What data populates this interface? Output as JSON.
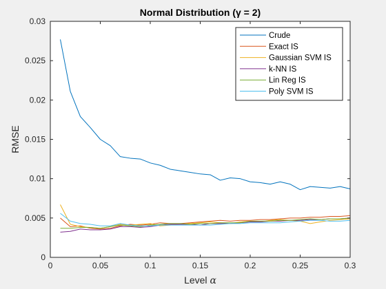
{
  "chart_data": {
    "type": "line",
    "title": "Normal Distribution (γ = 2)",
    "xlabel": "Level α",
    "ylabel": "RMSE",
    "xlim": [
      0,
      0.3
    ],
    "ylim": [
      0,
      0.03
    ],
    "xticks": [
      "0",
      "0.05",
      "0.1",
      "0.15",
      "0.2",
      "0.25",
      "0.3"
    ],
    "yticks": [
      "0",
      "0.005",
      "0.01",
      "0.015",
      "0.02",
      "0.025",
      "0.03"
    ],
    "grid": false,
    "legend_position": "top-right",
    "x": [
      0.01,
      0.02,
      0.03,
      0.04,
      0.05,
      0.06,
      0.07,
      0.08,
      0.09,
      0.1,
      0.11,
      0.12,
      0.13,
      0.14,
      0.15,
      0.16,
      0.17,
      0.18,
      0.19,
      0.2,
      0.21,
      0.22,
      0.23,
      0.24,
      0.25,
      0.26,
      0.27,
      0.28,
      0.29,
      0.3
    ],
    "series": [
      {
        "name": "Crude",
        "color": "#0072BD",
        "values": [
          0.0277,
          0.0211,
          0.0179,
          0.0165,
          0.015,
          0.0142,
          0.0128,
          0.0126,
          0.0125,
          0.012,
          0.0117,
          0.0112,
          0.011,
          0.0108,
          0.0106,
          0.0105,
          0.0098,
          0.0101,
          0.01,
          0.0096,
          0.0095,
          0.0093,
          0.0096,
          0.0093,
          0.0086,
          0.009,
          0.0089,
          0.0088,
          0.009,
          0.0087
        ]
      },
      {
        "name": "Exact IS",
        "color": "#D95319",
        "values": [
          0.005,
          0.0039,
          0.004,
          0.0037,
          0.0036,
          0.0037,
          0.004,
          0.0042,
          0.0041,
          0.0042,
          0.0044,
          0.0043,
          0.0043,
          0.0044,
          0.0045,
          0.0046,
          0.0047,
          0.0046,
          0.0047,
          0.0047,
          0.0048,
          0.0048,
          0.0049,
          0.005,
          0.005,
          0.0051,
          0.0051,
          0.0052,
          0.0052,
          0.0053
        ]
      },
      {
        "name": "Gaussian SVM IS",
        "color": "#EDB120",
        "values": [
          0.0067,
          0.0042,
          0.0039,
          0.0038,
          0.0037,
          0.0039,
          0.0042,
          0.0041,
          0.0042,
          0.0043,
          0.004,
          0.0041,
          0.0042,
          0.0043,
          0.0044,
          0.0045,
          0.0044,
          0.0043,
          0.0045,
          0.0046,
          0.0045,
          0.0047,
          0.0048,
          0.0047,
          0.0046,
          0.0043,
          0.0045,
          0.0047,
          0.0048,
          0.0049
        ]
      },
      {
        "name": "k-NN IS",
        "color": "#7E2F8E",
        "values": [
          0.0032,
          0.0033,
          0.0036,
          0.0035,
          0.0035,
          0.0036,
          0.0039,
          0.0039,
          0.0038,
          0.0039,
          0.0041,
          0.0042,
          0.0042,
          0.0042,
          0.0041,
          0.0043,
          0.0043,
          0.0043,
          0.0044,
          0.0045,
          0.0045,
          0.0046,
          0.0046,
          0.0047,
          0.0047,
          0.0048,
          0.0048,
          0.0049,
          0.0049,
          0.005
        ]
      },
      {
        "name": "Lin Reg IS",
        "color": "#77AC30",
        "values": [
          0.0037,
          0.0037,
          0.0038,
          0.0038,
          0.0037,
          0.0039,
          0.0041,
          0.004,
          0.0039,
          0.0041,
          0.0042,
          0.0043,
          0.0043,
          0.0042,
          0.0043,
          0.0043,
          0.0044,
          0.0044,
          0.0044,
          0.0046,
          0.0046,
          0.0046,
          0.0047,
          0.0047,
          0.0048,
          0.0049,
          0.0048,
          0.0049,
          0.0049,
          0.005
        ]
      },
      {
        "name": "Poly SVM IS",
        "color": "#4DBEEE",
        "values": [
          0.0056,
          0.0046,
          0.0043,
          0.0042,
          0.004,
          0.004,
          0.0043,
          0.0041,
          0.004,
          0.004,
          0.0041,
          0.0041,
          0.0041,
          0.0041,
          0.0041,
          0.0041,
          0.0042,
          0.0043,
          0.0043,
          0.0044,
          0.0044,
          0.0044,
          0.0044,
          0.0045,
          0.0046,
          0.0047,
          0.0047,
          0.0046,
          0.0046,
          0.0047
        ]
      }
    ]
  }
}
